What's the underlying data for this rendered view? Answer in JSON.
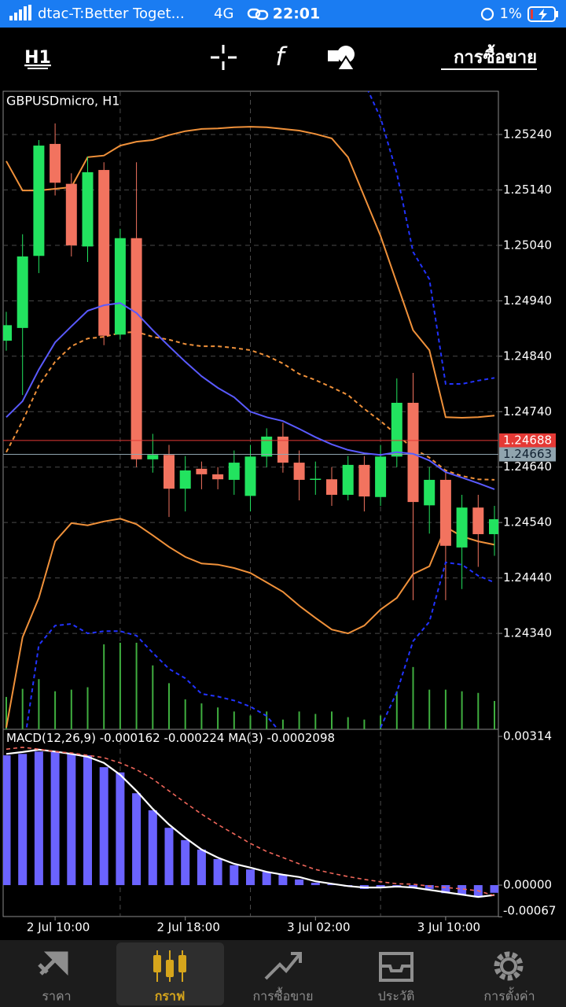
{
  "status_bar": {
    "carrier": "dtac-T:Better Toget...",
    "network": "4G",
    "time": "22:01",
    "battery": "1%"
  },
  "toolbar": {
    "timeframe": "H1",
    "trade": "การซื้อขาย"
  },
  "chart_data": {
    "type": "candlestick",
    "title": "GBPUSDmicro, H1",
    "categories": [
      null,
      null,
      null,
      "2 Jul 10:00",
      null,
      null,
      null,
      null,
      null,
      null,
      null,
      "2 Jul 18:00",
      null,
      null,
      null,
      null,
      null,
      null,
      null,
      "3 Jul 02:00",
      null,
      null,
      null,
      null,
      null,
      null,
      null,
      "3 Jul 10:00",
      null,
      null,
      null
    ],
    "open": [
      1.24868,
      1.24891,
      1.25021,
      1.25223,
      1.25151,
      1.25038,
      1.25176,
      1.24879,
      1.25053,
      1.24654,
      1.24662,
      1.24601,
      1.24637,
      1.24627,
      1.24617,
      1.24588,
      1.24659,
      1.24695,
      1.24648,
      1.24618,
      1.24618,
      1.2459,
      1.24644,
      1.24586,
      1.24659,
      1.24756,
      1.24571,
      1.24617,
      1.24495,
      1.24567,
      1.24519
    ],
    "high": [
      1.2492,
      1.2506,
      1.2523,
      1.2526,
      1.2517,
      1.252,
      1.2519,
      1.2507,
      1.2519,
      1.247,
      1.2468,
      1.2466,
      1.2465,
      1.2464,
      1.2467,
      1.2468,
      1.2471,
      1.2472,
      1.2467,
      1.2465,
      1.2464,
      1.2466,
      1.2466,
      1.2468,
      1.248,
      1.2481,
      1.2464,
      1.2463,
      1.2459,
      1.2459,
      1.2457
    ],
    "low": [
      1.2485,
      1.2477,
      1.2499,
      1.2513,
      1.2502,
      1.2501,
      1.2486,
      1.2487,
      1.2464,
      1.2463,
      1.2455,
      1.2456,
      1.246,
      1.246,
      1.2459,
      1.2456,
      1.2464,
      1.2463,
      1.2458,
      1.2459,
      1.2457,
      1.2458,
      1.2456,
      1.2457,
      1.2464,
      1.244,
      1.2452,
      1.244,
      1.2442,
      1.2446,
      1.2448
    ],
    "close": [
      1.24896,
      1.2502,
      1.2522,
      1.25153,
      1.2504,
      1.25172,
      1.24877,
      1.25053,
      1.24654,
      1.24662,
      1.24601,
      1.24634,
      1.24627,
      1.24618,
      1.24648,
      1.24659,
      1.24695,
      1.24648,
      1.24617,
      1.24619,
      1.2459,
      1.24644,
      1.24587,
      1.24659,
      1.24756,
      1.24577,
      1.24617,
      1.24498,
      1.24567,
      1.24519,
      1.24546
    ],
    "volume": [
      40,
      50,
      62,
      47,
      49,
      52,
      105,
      107,
      107,
      79,
      57,
      37,
      32,
      27,
      22,
      17,
      22,
      12,
      22,
      19,
      22,
      15,
      12,
      17,
      47,
      77,
      49,
      49,
      47,
      45,
      35
    ],
    "up_color": "#22e35f",
    "down_color": "#f2735f",
    "volume_color": "#3fae3f",
    "lines": [
      {
        "color": "#f0913a",
        "dashed": false,
        "values": [
          1.25192,
          1.25139,
          1.25139,
          1.25142,
          1.25145,
          1.25199,
          1.25202,
          1.2522,
          1.25227,
          1.2523,
          1.25239,
          1.25246,
          1.2525,
          1.25251,
          1.25253,
          1.25254,
          1.25253,
          1.2525,
          1.25247,
          1.25241,
          1.25233,
          1.25199,
          1.25128,
          1.25057,
          1.24972,
          1.24887,
          1.24851,
          1.2473,
          1.24729,
          1.2473,
          1.24733
        ]
      },
      {
        "color": "#f0913a",
        "dashed": true,
        "values": [
          1.24667,
          1.24723,
          1.24787,
          1.2483,
          1.24858,
          1.24872,
          1.24875,
          1.24882,
          1.24884,
          1.24875,
          1.2487,
          1.24862,
          1.24858,
          1.24858,
          1.24855,
          1.24851,
          1.24841,
          1.24827,
          1.24808,
          1.24797,
          1.24784,
          1.2477,
          1.24745,
          1.24723,
          1.24698,
          1.24674,
          1.24657,
          1.24634,
          1.24624,
          1.24618,
          1.24617
        ]
      },
      {
        "color": "#f0913a",
        "dashed": false,
        "values": [
          1.2417,
          1.24333,
          1.24404,
          1.24506,
          1.24539,
          1.24535,
          1.24542,
          1.24547,
          1.24537,
          1.24517,
          1.24496,
          1.24478,
          1.24466,
          1.24464,
          1.24458,
          1.24449,
          1.24432,
          1.24415,
          1.2439,
          1.24368,
          1.24347,
          1.2434,
          1.24354,
          1.24383,
          1.24404,
          1.24447,
          1.24461,
          1.24532,
          1.24515,
          1.24506,
          1.245
        ]
      },
      {
        "color": "#5a5aff",
        "dashed": false,
        "values": [
          1.2473,
          1.24759,
          1.24816,
          1.24865,
          1.24894,
          1.24922,
          1.24932,
          1.24936,
          1.24918,
          1.24887,
          1.24858,
          1.2483,
          1.24804,
          1.24783,
          1.24766,
          1.2474,
          1.2473,
          1.24723,
          1.24709,
          1.24694,
          1.24681,
          1.24671,
          1.24665,
          1.24662,
          1.24667,
          1.24664,
          1.24652,
          1.24631,
          1.24621,
          1.24611,
          1.246
        ]
      },
      {
        "color": "#2233ff",
        "dashed": true,
        "values": [
          null,
          null,
          null,
          null,
          null,
          null,
          null,
          null,
          null,
          null,
          null,
          null,
          null,
          null,
          null,
          null,
          null,
          null,
          null,
          null,
          null,
          null,
          1.25334,
          1.2527,
          1.2517,
          1.25028,
          1.24979,
          1.2479,
          1.2479,
          1.24796,
          1.24801
        ]
      },
      {
        "color": "#2233ff",
        "dashed": true,
        "values": [
          null,
          1.2412,
          1.24319,
          1.24354,
          1.24357,
          1.2434,
          1.24344,
          1.24344,
          1.24336,
          1.24305,
          1.24276,
          1.24259,
          1.24231,
          1.24226,
          1.24219,
          1.24208,
          1.24191,
          1.24156,
          null,
          null,
          null,
          null,
          null,
          1.2417,
          1.24234,
          1.24326,
          1.24361,
          1.24468,
          1.24464,
          1.24444,
          1.24432
        ]
      }
    ],
    "price_lines": [
      {
        "value": 1.24688,
        "color": "#e53935"
      },
      {
        "value": 1.24663,
        "color": "#90a4ae"
      }
    ],
    "ylim": [
      1.24167,
      1.25318
    ],
    "yticks": [
      {
        "value": 1.2524,
        "label": "1.25240"
      },
      {
        "value": 1.2514,
        "label": "1.25140"
      },
      {
        "value": 1.2504,
        "label": "1.25040"
      },
      {
        "value": 1.2494,
        "label": "1.24940"
      },
      {
        "value": 1.2484,
        "label": "1.24840"
      },
      {
        "value": 1.2474,
        "label": "1.24740"
      },
      {
        "value": 1.2464,
        "label": "1.24640"
      },
      {
        "value": 1.2454,
        "label": "1.24540"
      },
      {
        "value": 1.2444,
        "label": "1.24440"
      },
      {
        "value": 1.2434,
        "label": "1.24340"
      }
    ],
    "grid": true,
    "macd": {
      "label": "MACD(12,26,9)",
      "main": -0.000162,
      "signal": -0.000224,
      "ma_label": "MA(3)",
      "ma": -0.0002098,
      "histogram_color": "#6b63ff",
      "histogram": [
        0.00274,
        0.00277,
        0.00282,
        0.00282,
        0.00277,
        0.00274,
        0.00249,
        0.00238,
        0.00194,
        0.00158,
        0.00121,
        0.00095,
        0.00075,
        0.00055,
        0.00042,
        0.00033,
        0.00028,
        0.00022,
        0.00012,
        5e-05,
        2e-05,
        -3e-05,
        -8e-05,
        -5e-05,
        -3e-05,
        -5e-05,
        -8e-05,
        -0.00017,
        -0.0002,
        -0.00025,
        -0.000162
      ],
      "lines": [
        {
          "color": "#ffffff",
          "dashed": false,
          "values": [
            0.00277,
            0.00281,
            0.00286,
            0.00282,
            0.00277,
            0.00271,
            0.00258,
            0.00233,
            0.00199,
            0.00161,
            0.00128,
            0.001,
            0.00075,
            0.00058,
            0.00045,
            0.00037,
            0.00028,
            0.00022,
            0.00017,
            8e-05,
            3e-05,
            -2e-05,
            -5e-05,
            -5e-05,
            -3e-05,
            -5e-05,
            -0.0001,
            -0.00015,
            -0.0002,
            -0.00025,
            -0.0002098
          ]
        },
        {
          "color": "#f0665a",
          "dashed": true,
          "values": [
            0.00287,
            0.00291,
            0.00287,
            0.00282,
            0.00279,
            0.00274,
            0.00269,
            0.00258,
            0.00244,
            0.00224,
            0.00199,
            0.00174,
            0.0015,
            0.00128,
            0.00108,
            0.00088,
            0.00071,
            0.00058,
            0.00045,
            0.00033,
            0.00025,
            0.00018,
            0.00012,
            7e-05,
            3e-05,
            2e-05,
            -2e-05,
            -5e-05,
            -8e-05,
            -0.00012,
            -0.000224
          ]
        }
      ],
      "ylim": [
        -0.00068,
        0.00329
      ],
      "yticks": [
        0.00314,
        {
          "value": 0,
          "label": "0.00000"
        },
        -0.00067
      ]
    }
  },
  "nav": {
    "active": 1,
    "items": [
      "ราคา",
      "กราฟ",
      "การซื้อขาย",
      "ประวัติ",
      "การตั้งค่า"
    ]
  }
}
